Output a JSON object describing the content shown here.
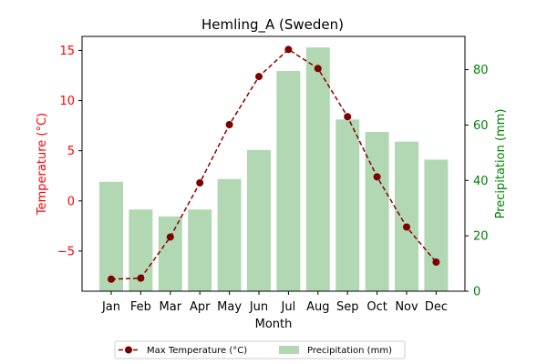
{
  "chart_data": {
    "type": "bar+line",
    "title": "Hemling_A (Sweden)",
    "xlabel": "Month",
    "ylabel_left": "Temperature (°C)",
    "ylabel_right": "Precipitation (mm)",
    "categories": [
      "Jan",
      "Feb",
      "Mar",
      "Apr",
      "May",
      "Jun",
      "Jul",
      "Aug",
      "Sep",
      "Oct",
      "Nov",
      "Dec"
    ],
    "ylim_left": [
      -9.0,
      16.4
    ],
    "ylim_right": [
      0,
      92
    ],
    "yticks_left": [
      -5,
      0,
      5,
      10,
      15
    ],
    "yticks_right": [
      0,
      20,
      40,
      60,
      80
    ],
    "grid": false,
    "legend_position": "bottom-center",
    "series": [
      {
        "name": "Max Temperature (°C)",
        "axis": "left",
        "kind": "line",
        "color": "#8b0000",
        "values": [
          -7.8,
          -7.7,
          -3.6,
          1.8,
          7.6,
          12.4,
          15.1,
          13.2,
          8.4,
          2.4,
          -2.6,
          -6.1
        ]
      },
      {
        "name": "Precipitation (mm)",
        "axis": "right",
        "kind": "bar",
        "color": "#b1d8b2",
        "values": [
          39.5,
          29.5,
          27,
          29.5,
          40.5,
          51,
          79.5,
          88,
          62,
          57.5,
          54,
          47.5
        ]
      }
    ],
    "left_axis_color": "#ff0000",
    "right_axis_color": "#008000"
  }
}
